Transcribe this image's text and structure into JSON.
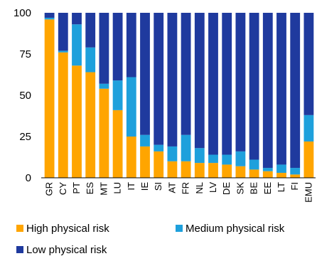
{
  "chart_data": {
    "type": "bar",
    "stacked": true,
    "categories": [
      "GR",
      "CY",
      "PT",
      "ES",
      "MT",
      "LU",
      "IT",
      "IE",
      "SI",
      "AT",
      "FR",
      "NL",
      "LV",
      "DE",
      "SK",
      "BE",
      "EE",
      "LT",
      "FI",
      "EMU"
    ],
    "series": [
      {
        "name": "High physical risk",
        "color": "#FFA500",
        "values": [
          96,
          76,
          68,
          64,
          54,
          41,
          25,
          19,
          16,
          10,
          10,
          9,
          9,
          8,
          7,
          5,
          4,
          3,
          2,
          22
        ]
      },
      {
        "name": "Medium physical risk",
        "color": "#1EA0DC",
        "values": [
          1,
          1,
          25,
          15,
          3,
          18,
          36,
          7,
          4,
          9,
          16,
          9,
          5,
          6,
          9,
          6,
          2,
          5,
          4,
          16
        ]
      },
      {
        "name": "Low physical risk",
        "color": "#1F3A9E",
        "values": [
          3,
          23,
          7,
          21,
          43,
          41,
          39,
          74,
          80,
          81,
          74,
          82,
          86,
          86,
          84,
          89,
          94,
          92,
          94,
          62
        ]
      }
    ],
    "ylim": [
      0,
      100
    ],
    "yticks": [
      "0",
      "25",
      "50",
      "75",
      "100"
    ],
    "grid": false,
    "legend_position": "bottom",
    "title": "",
    "xlabel": "",
    "ylabel": ""
  }
}
